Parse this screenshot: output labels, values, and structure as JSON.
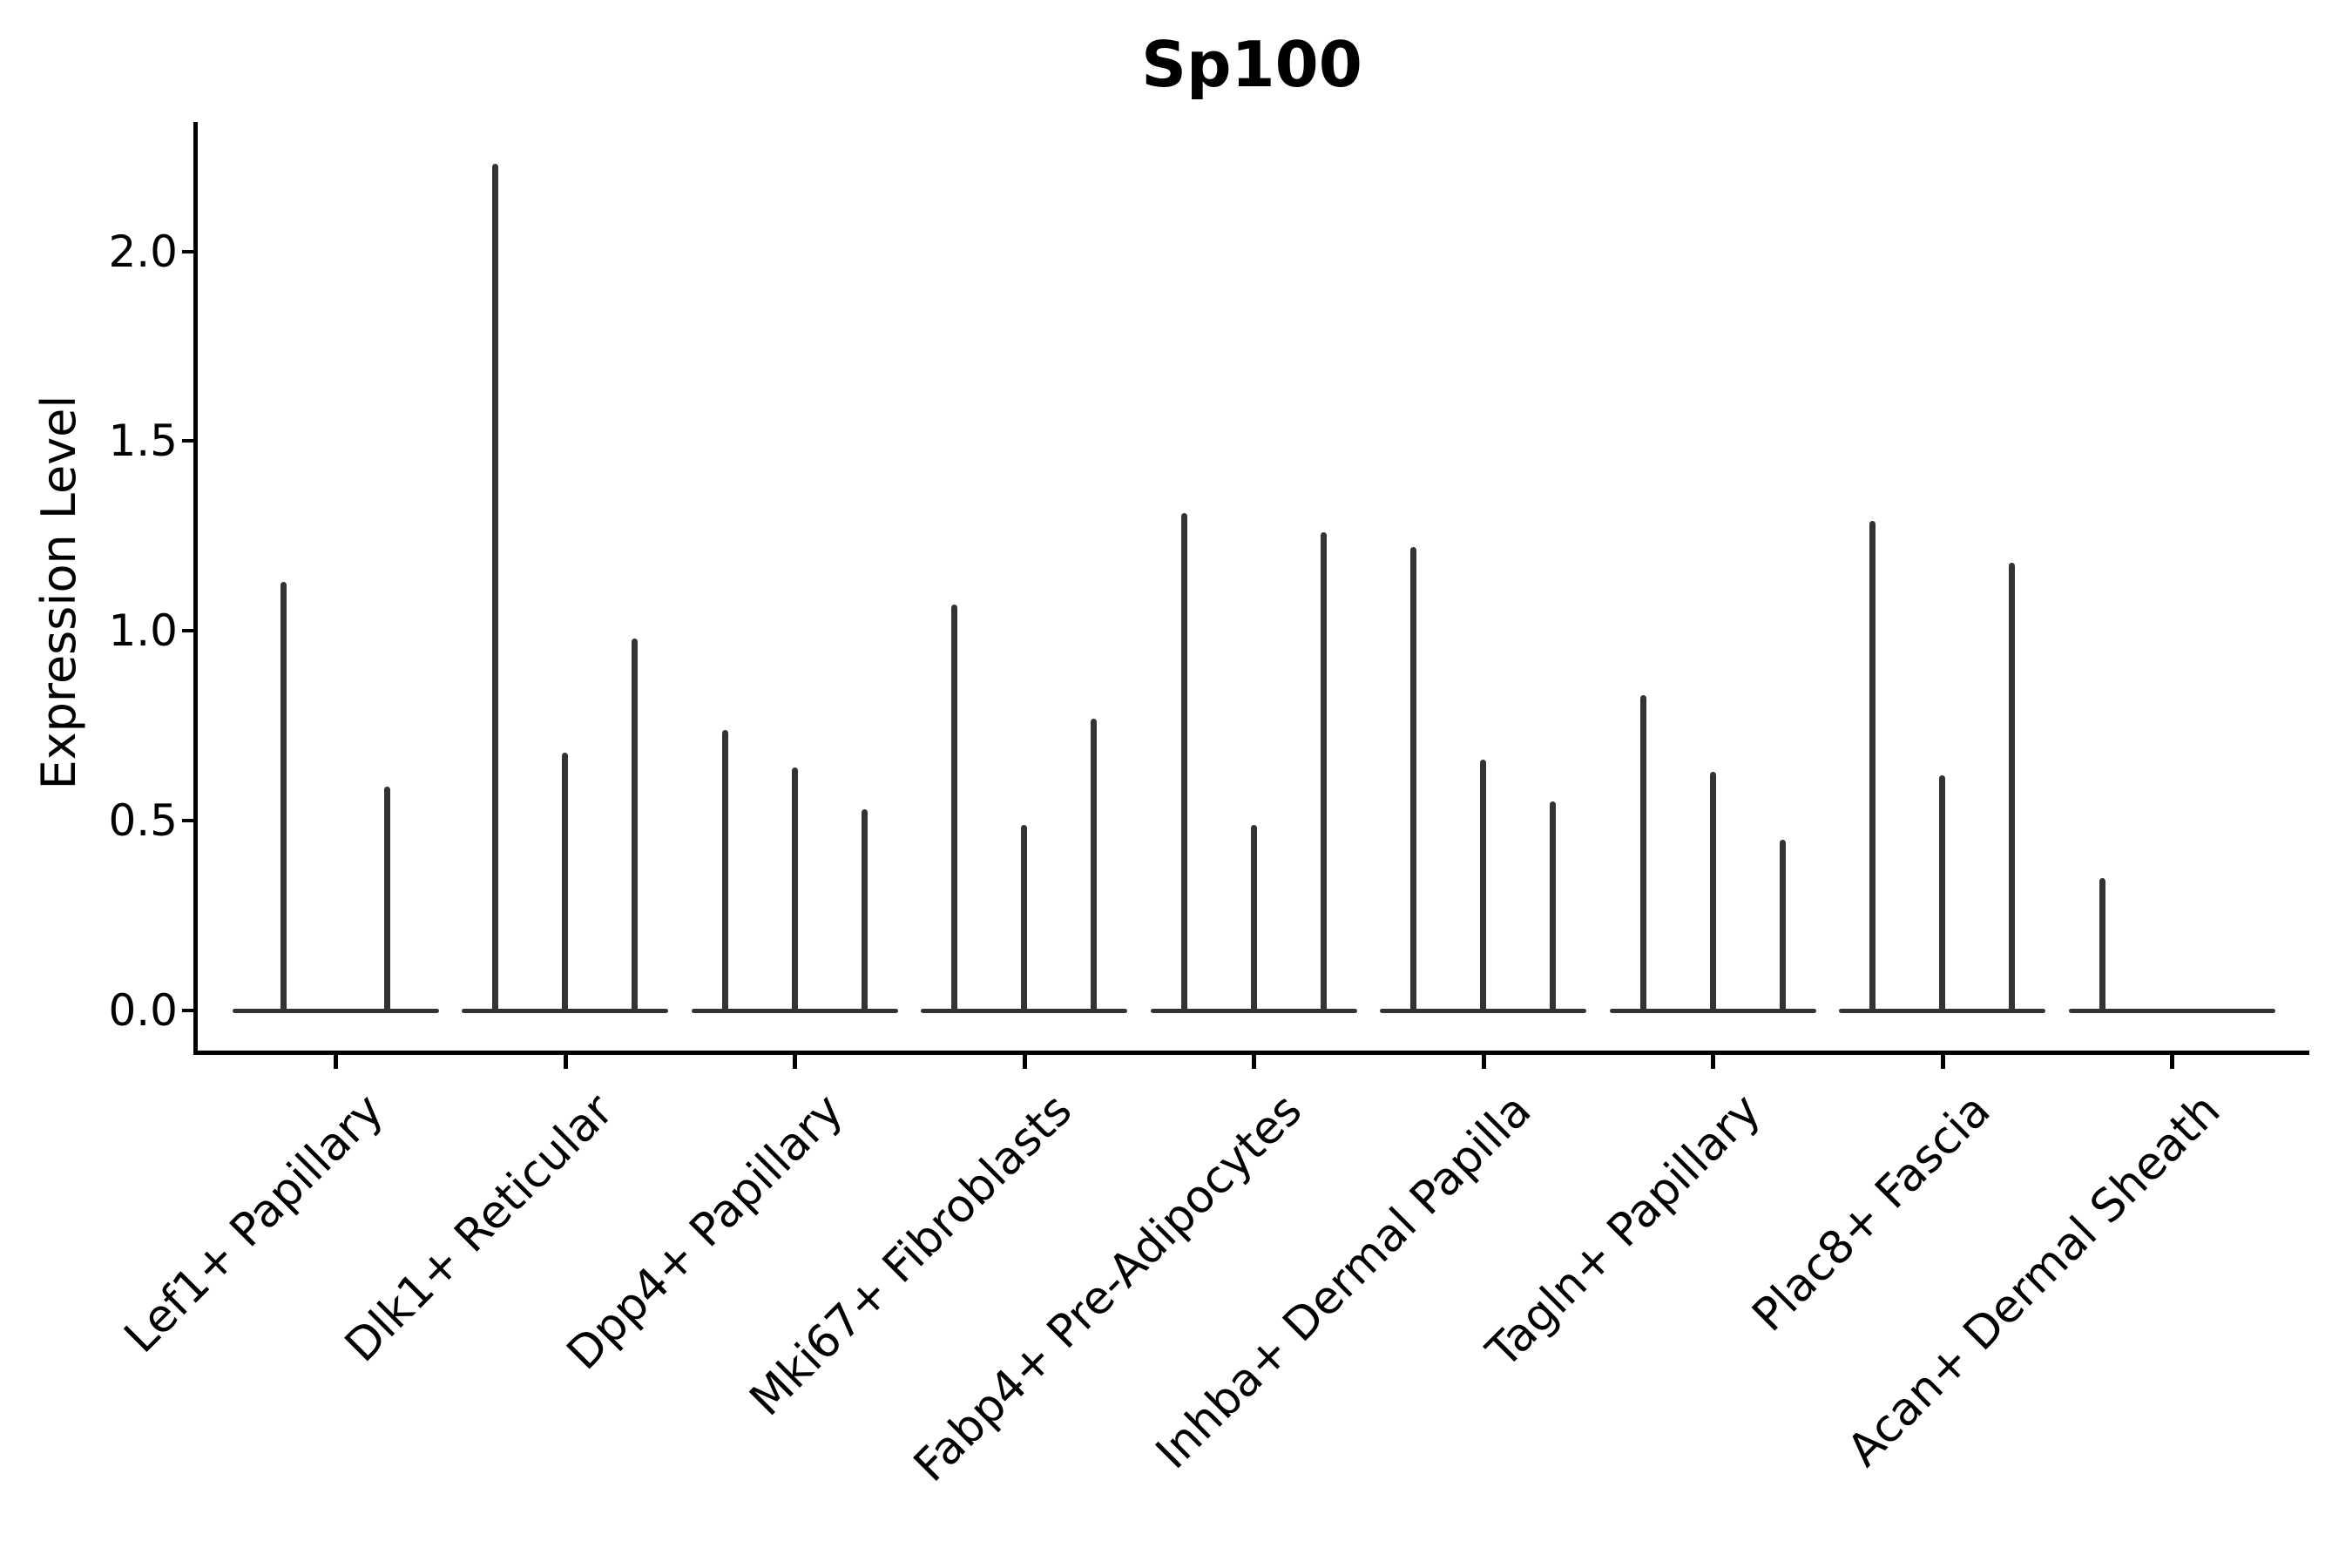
{
  "title": "Sp100",
  "axes": {
    "y_label": "Expression Level",
    "y_tick_labels": [
      "0.0",
      "0.5",
      "1.0",
      "1.5",
      "2.0"
    ]
  },
  "colors": {
    "violin_line": "#333333",
    "axis": "#000000",
    "background": "#ffffff",
    "text": "#000000"
  },
  "chart_data": {
    "type": "violin",
    "title": "Sp100",
    "xlabel": "",
    "ylabel": "Expression Level",
    "ylim": [
      -0.11,
      2.34
    ],
    "yticks": [
      0.0,
      0.5,
      1.0,
      1.5,
      2.0
    ],
    "grid": false,
    "legend_position": "none",
    "style": "collapsed thin violins: flat base segment at 0 plus vertical spike to max expression; 2-3 dodged violins per category",
    "categories": [
      "Lef1+ Papillary",
      "Dlk1+ Reticular",
      "Dpp4+ Papillary",
      "Mki67+ Fibroblasts",
      "Fabp4+ Pre-Adipocytes",
      "Inhba+ Dermal Papilla",
      "Tagln+ Papillary",
      "Plac8+ Fascia",
      "Acan+ Dermal Sheath"
    ],
    "series": [
      {
        "category": "Lef1+ Papillary",
        "spike_maxima": [
          1.13,
          0.59
        ]
      },
      {
        "category": "Dlk1+ Reticular",
        "spike_maxima": [
          2.23,
          0.68,
          0.98
        ]
      },
      {
        "category": "Dpp4+ Papillary",
        "spike_maxima": [
          0.74,
          0.64,
          0.53
        ]
      },
      {
        "category": "Mki67+ Fibroblasts",
        "spike_maxima": [
          1.07,
          0.49,
          0.77
        ]
      },
      {
        "category": "Fabp4+ Pre-Adipocytes",
        "spike_maxima": [
          1.31,
          0.49,
          1.26
        ]
      },
      {
        "category": "Inhba+ Dermal Papilla",
        "spike_maxima": [
          1.22,
          0.66,
          0.55
        ]
      },
      {
        "category": "Tagln+ Papillary",
        "spike_maxima": [
          0.83,
          0.63,
          0.45
        ]
      },
      {
        "category": "Plac8+ Fascia",
        "spike_maxima": [
          1.29,
          0.62,
          1.18
        ]
      },
      {
        "category": "Acan+ Dermal Sheath",
        "spike_maxima": [
          0.35,
          0,
          0
        ]
      }
    ]
  }
}
